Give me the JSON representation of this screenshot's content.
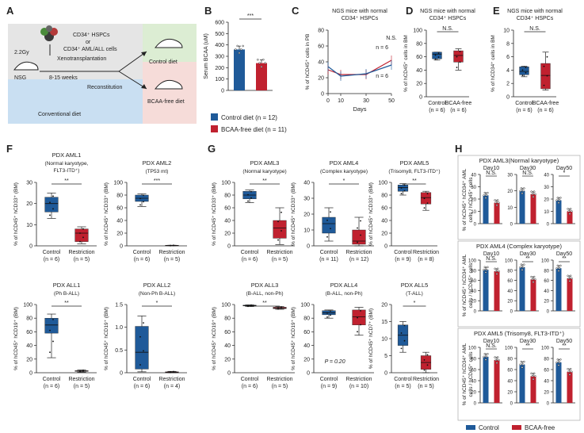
{
  "panel_letters": [
    "A",
    "B",
    "C",
    "D",
    "E",
    "F",
    "G",
    "H"
  ],
  "schematic": {
    "dose": "2.2Gy",
    "mouse_label": "NSG",
    "cells_line1": "CD34⁺ HSPCs",
    "cells_or": "or",
    "cells_line2": "CD34⁺ AML/ALL cells",
    "xeno": "Xenotransplantation",
    "weeks": "8-15 weeks",
    "recon": "Reconstitution",
    "conv": "Conventional diet",
    "control": "Control diet",
    "bcaa": "BCAA-free diet"
  },
  "legend_b": {
    "control": "Control diet (n = 12)",
    "bcaa": "BCAA-free diet (n = 11)"
  },
  "legend_h": {
    "control": "Control",
    "bcaa": "BCAA-free"
  },
  "colors": {
    "control": "#1f5a99",
    "bcaa": "#c0212f",
    "sch_blue": "#c9dff2",
    "sch_green": "#dcedd3",
    "sch_pink": "#f6dcd9",
    "sch_gray": "#e5e5e5"
  },
  "chart_data": [
    {
      "id": "B",
      "type": "bar",
      "title": "",
      "ylabel": "Serum BCAA (uM)",
      "ylim": [
        0,
        600
      ],
      "yticks": [
        0,
        100,
        200,
        300,
        400,
        500,
        600
      ],
      "categories": [
        "Control",
        "BCAA-free"
      ],
      "values": [
        360,
        240
      ],
      "sig": "***"
    },
    {
      "id": "C",
      "type": "line",
      "title": "NGS mice with normal CD34⁺ HSPCs",
      "xlabel": "Days",
      "ylabel": "% of hCD45⁺ cells in PB",
      "ylim": [
        0,
        80
      ],
      "yticks": [
        0,
        20,
        40,
        60,
        80
      ],
      "x": [
        0,
        10,
        30,
        50
      ],
      "series": [
        {
          "name": "n = 6",
          "key": "bcaa",
          "values": [
            30,
            24,
            24,
            42
          ]
        },
        {
          "name": "n = 6",
          "key": "control",
          "values": [
            34,
            22,
            25,
            36
          ]
        }
      ],
      "sig": "N.S."
    },
    {
      "id": "D",
      "type": "box",
      "title": "NGS mice with normal CD34⁺ HSPCs",
      "ylabel": "% of hCD45⁺ cells in BM",
      "ylim": [
        0,
        100
      ],
      "yticks": [
        0,
        20,
        40,
        60,
        80,
        100
      ],
      "categories": [
        "Control",
        "BCAA-free"
      ],
      "n": [
        "(n = 6)",
        "(n = 6)"
      ],
      "boxes": [
        {
          "min": 55,
          "q1": 57,
          "med": 64,
          "q3": 67,
          "max": 67
        },
        {
          "min": 40,
          "q1": 52,
          "med": 62,
          "q3": 69,
          "max": 72
        }
      ],
      "sig": "N.S."
    },
    {
      "id": "E",
      "type": "box",
      "title": "NGS mice with normal CD34⁺ HSPCs",
      "ylabel": "% of hCD34⁺ cells in BM",
      "ylim": [
        0,
        10
      ],
      "yticks": [
        0,
        2,
        4,
        6,
        8,
        10
      ],
      "categories": [
        "Control",
        "BCAA-free"
      ],
      "n": [
        "(n = 6)",
        "(n = 6)"
      ],
      "boxes": [
        {
          "min": 3.0,
          "q1": 3.3,
          "med": 3.8,
          "q3": 4.5,
          "max": 4.6
        },
        {
          "min": 1.0,
          "q1": 1.2,
          "med": 3.2,
          "q3": 5.0,
          "max": 6.7
        }
      ],
      "sig": "N.S."
    },
    {
      "id": "F1",
      "type": "box",
      "title": "PDX AML1",
      "subtitle": [
        "(Normal karyotype,",
        "FLT3-ITD⁺)"
      ],
      "ylabel": "% of hCD45⁺ hCD33⁺ (BM)",
      "ylim": [
        0,
        30
      ],
      "yticks": [
        0,
        10,
        20,
        30
      ],
      "categories": [
        "Control",
        "Restriction"
      ],
      "n": [
        "(n = 6)",
        "(n = 5)"
      ],
      "boxes": [
        {
          "min": 13,
          "q1": 16,
          "med": 20,
          "q3": 23,
          "max": 25
        },
        {
          "min": 1,
          "q1": 2,
          "med": 6,
          "q3": 8,
          "max": 9
        }
      ],
      "sig": "**"
    },
    {
      "id": "F2",
      "type": "box",
      "title": "PDX AML2",
      "subtitle": [
        "(TP53 mt)"
      ],
      "ylabel": "% of hCD45⁺ hCD33⁺ (BM)",
      "ylim": [
        0,
        100
      ],
      "yticks": [
        0,
        20,
        40,
        60,
        80,
        100
      ],
      "categories": [
        "Control",
        "Restriction"
      ],
      "n": [
        "(n = 6)",
        "(n = 5)"
      ],
      "boxes": [
        {
          "min": 62,
          "q1": 70,
          "med": 75,
          "q3": 80,
          "max": 82
        },
        {
          "min": 0,
          "q1": 0,
          "med": 0.5,
          "q3": 1,
          "max": 1
        }
      ],
      "sig": "***"
    },
    {
      "id": "F3",
      "type": "box",
      "title": "PDX ALL1",
      "subtitle": [
        "(Ph B-ALL)"
      ],
      "ylabel": "% of hCD45⁺ hCD19⁺ (BM)",
      "ylim": [
        0,
        100
      ],
      "yticks": [
        0,
        20,
        40,
        60,
        80,
        100
      ],
      "categories": [
        "Control",
        "Restriction"
      ],
      "n": [
        "(n = 6)",
        "(n = 5)"
      ],
      "boxes": [
        {
          "min": 22,
          "q1": 58,
          "med": 70,
          "q3": 80,
          "max": 86
        },
        {
          "min": 1,
          "q1": 2,
          "med": 2.5,
          "q3": 3,
          "max": 4
        }
      ],
      "sig": "**"
    },
    {
      "id": "F4",
      "type": "box",
      "title": "PDX ALL2",
      "subtitle": [
        "(Non-Ph B-ALL)"
      ],
      "ylabel": "% of hCD45⁺ hCD19⁺ (BM)",
      "ylim": [
        0,
        1.5
      ],
      "yticks": [
        0,
        0.5,
        1.0,
        1.5
      ],
      "categories": [
        "Control",
        "Restriction"
      ],
      "n": [
        "(n = 6)",
        "(n = 4)"
      ],
      "boxes": [
        {
          "min": 0.02,
          "q1": 0.08,
          "med": 0.45,
          "q3": 1.02,
          "max": 1.25
        },
        {
          "min": 0.0,
          "q1": 0.0,
          "med": 0.01,
          "q3": 0.02,
          "max": 0.03
        }
      ],
      "sig": "*"
    },
    {
      "id": "G1",
      "type": "box",
      "title": "PDX AML3",
      "subtitle": [
        "(Normal karyotype)"
      ],
      "ylabel": "% of hCD45⁺ hCD33⁺ (BM)",
      "ylim": [
        0,
        100
      ],
      "yticks": [
        0,
        20,
        40,
        60,
        80,
        100
      ],
      "categories": [
        "Control",
        "Restriction"
      ],
      "n": [
        "(n = 6)",
        "(n = 5)"
      ],
      "boxes": [
        {
          "min": 68,
          "q1": 74,
          "med": 80,
          "q3": 86,
          "max": 88
        },
        {
          "min": 2,
          "q1": 12,
          "med": 28,
          "q3": 40,
          "max": 60
        }
      ],
      "sig": "**"
    },
    {
      "id": "G2",
      "type": "box",
      "title": "PDX AML4",
      "subtitle": [
        "(Complex karyotype)"
      ],
      "ylabel": "% of hCD45⁺ hCD33⁺ (BM)",
      "ylim": [
        0,
        40
      ],
      "yticks": [
        0,
        10,
        20,
        30,
        40
      ],
      "categories": [
        "Control",
        "Restriction"
      ],
      "n": [
        "(n = 11)",
        "(n = 12)"
      ],
      "boxes": [
        {
          "min": 3,
          "q1": 8,
          "med": 14,
          "q3": 18,
          "max": 24
        },
        {
          "min": 0,
          "q1": 1,
          "med": 3,
          "q3": 10,
          "max": 18
        }
      ],
      "sig": "*"
    },
    {
      "id": "G3",
      "type": "box",
      "title": "PDX AML5",
      "subtitle": [
        "(Trisomy8, FLT3-ITD⁺)"
      ],
      "ylabel": "% of hCD45⁺ hCD33⁺ (BM)",
      "ylim": [
        0,
        100
      ],
      "yticks": [
        0,
        20,
        40,
        60,
        80,
        100
      ],
      "categories": [
        "Control",
        "Restriction"
      ],
      "n": [
        "(n = 9)",
        "(n = 8)"
      ],
      "boxes": [
        {
          "min": 80,
          "q1": 86,
          "med": 92,
          "q3": 96,
          "max": 98
        },
        {
          "min": 56,
          "q1": 66,
          "med": 76,
          "q3": 84,
          "max": 86
        }
      ],
      "sig": "**"
    },
    {
      "id": "G4",
      "type": "box",
      "title": "PDX ALL3",
      "subtitle": [
        "(B-ALL, non-Ph)"
      ],
      "ylabel": "% of hCD45⁺ hCD19⁺ (BM)",
      "ylim": [
        0,
        100
      ],
      "yticks": [
        0,
        20,
        40,
        60,
        80,
        100
      ],
      "categories": [
        "Control",
        "Restriction"
      ],
      "n": [
        "(n = 6)",
        "(n = 5)"
      ],
      "boxes": [
        {
          "min": 97,
          "q1": 98,
          "med": 98.5,
          "q3": 99,
          "max": 99.5
        },
        {
          "min": 93,
          "q1": 94,
          "med": 95,
          "q3": 96,
          "max": 97
        }
      ],
      "sig": "**"
    },
    {
      "id": "G5",
      "type": "box",
      "title": "PDX ALL4",
      "subtitle": [
        "(B-ALL, non-Ph)"
      ],
      "ylabel": "% of hCD45⁺ hCD19⁺ (BM)",
      "ylim": [
        0,
        100
      ],
      "yticks": [
        0,
        20,
        40,
        60,
        80,
        100
      ],
      "categories": [
        "Control",
        "Restriction"
      ],
      "n": [
        "(n = 9)",
        "(n = 10)"
      ],
      "boxes": [
        {
          "min": 80,
          "q1": 85,
          "med": 88,
          "q3": 91,
          "max": 92
        },
        {
          "min": 55,
          "q1": 70,
          "med": 82,
          "q3": 92,
          "max": 96
        }
      ],
      "sig": "",
      "pvalue": "P = 0.20"
    },
    {
      "id": "G6",
      "type": "box",
      "title": "PDX ALL5",
      "subtitle": [
        "(T-ALL)"
      ],
      "ylabel": "% of hCD45⁺ hCD7⁺ (BM)",
      "ylim": [
        0,
        20
      ],
      "yticks": [
        0,
        5,
        10,
        15,
        20
      ],
      "categories": [
        "Control",
        "Restriction"
      ],
      "n": [
        "(n = 5)",
        "(n = 5)"
      ],
      "boxes": [
        {
          "min": 6,
          "q1": 8,
          "med": 11,
          "q3": 14,
          "max": 15
        },
        {
          "min": 0,
          "q1": 1,
          "med": 3,
          "q3": 5,
          "max": 6
        }
      ],
      "sig": "*"
    },
    {
      "id": "H1a",
      "type": "bar",
      "title": "Day10",
      "ylim": [
        0,
        40
      ],
      "yticks": [
        0,
        10,
        20,
        30,
        40
      ],
      "values": [
        23,
        17
      ],
      "sig": "N.S."
    },
    {
      "id": "H1b",
      "type": "bar",
      "title": "Day30",
      "ylim": [
        0,
        30
      ],
      "yticks": [
        0,
        10,
        20,
        30
      ],
      "values": [
        20,
        18
      ],
      "sig": "N.S."
    },
    {
      "id": "H1c",
      "type": "bar",
      "title": "Day50",
      "ylim": [
        0,
        40
      ],
      "yticks": [
        0,
        10,
        20,
        30,
        40
      ],
      "values": [
        19,
        10
      ],
      "sig": "*"
    },
    {
      "id": "H2a",
      "type": "bar",
      "title": "Day10",
      "ylim": [
        0,
        100
      ],
      "yticks": [
        0,
        20,
        40,
        60,
        80,
        100
      ],
      "values": [
        81,
        78
      ],
      "sig": "N.S."
    },
    {
      "id": "H2b",
      "type": "bar",
      "title": "Day30",
      "ylim": [
        0,
        100
      ],
      "yticks": [
        0,
        20,
        40,
        60,
        80,
        100
      ],
      "values": [
        86,
        62
      ],
      "sig": "**"
    },
    {
      "id": "H2c",
      "type": "bar",
      "title": "Day50",
      "ylim": [
        0,
        100
      ],
      "yticks": [
        0,
        20,
        40,
        60,
        80,
        100
      ],
      "values": [
        84,
        64
      ],
      "sig": "**"
    },
    {
      "id": "H3a",
      "type": "bar",
      "title": "Day10",
      "ylim": [
        0,
        100
      ],
      "yticks": [
        0,
        20,
        40,
        60,
        80,
        100
      ],
      "values": [
        83,
        77
      ],
      "sig": "N.S."
    },
    {
      "id": "H3b",
      "type": "bar",
      "title": "Day30",
      "ylim": [
        0,
        100
      ],
      "yticks": [
        0,
        20,
        40,
        60,
        80,
        100
      ],
      "values": [
        69,
        48
      ],
      "sig": "**"
    },
    {
      "id": "H3c",
      "type": "bar",
      "title": "Day50",
      "ylim": [
        0,
        100
      ],
      "yticks": [
        0,
        20,
        40,
        60,
        80,
        100
      ],
      "values": [
        73,
        56
      ],
      "sig": "**"
    }
  ],
  "h_groups": [
    {
      "title": "PDX AML3(Normal karyotype)",
      "ylabel": [
        "% of hCD45⁺ hCD34⁺ AML",
        "cells / hCD45⁺ cells"
      ]
    },
    {
      "title": "PDX AML4 (Complex karyotype)",
      "ylabel": [
        "% of hCD45⁺ hCD34⁺ AML",
        "cells / hCD45⁺ cells"
      ]
    },
    {
      "title": "PDX AML5 (Trisomy8, FLT3-ITD⁺)",
      "ylabel": [
        "% of hCD45⁺ hCD34⁺ AML",
        "cells / hCD45⁺ cells"
      ]
    }
  ]
}
